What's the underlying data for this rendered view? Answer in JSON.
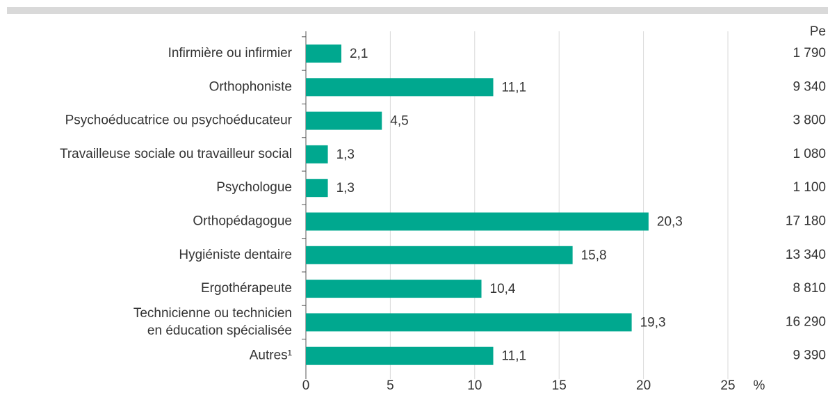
{
  "chart_data": {
    "type": "hbar",
    "categories": [
      "Infirmière ou infirmier",
      "Orthophoniste",
      "Psychoéducatrice ou psychoéducateur",
      "Travailleuse sociale ou travailleur social",
      "Psychologue",
      "Orthopédagogue",
      "Hygiéniste dentaire",
      "Ergothérapeute",
      [
        "Technicienne ou technicien",
        "en éducation spécialisée"
      ],
      "Autres¹"
    ],
    "values": [
      2.1,
      11.1,
      4.5,
      1.3,
      1.3,
      20.3,
      15.8,
      10.4,
      19.3,
      11.1
    ],
    "value_labels": [
      "2,1",
      "11,1",
      "4,5",
      "1,3",
      "1,3",
      "20,3",
      "15,8",
      "10,4",
      "19,3",
      "11,1"
    ],
    "color": "#00a88f",
    "xlim": [
      0,
      25
    ],
    "xticks": [
      0,
      5,
      10,
      15,
      20,
      25
    ],
    "grid": true,
    "x_unit": "%",
    "column_header": "Pe",
    "column_values": [
      "1 790",
      "9 340",
      "3 800",
      "1 080",
      "1 100",
      "17 180",
      "13 340",
      "8 810",
      "16 290",
      "9 390"
    ]
  }
}
